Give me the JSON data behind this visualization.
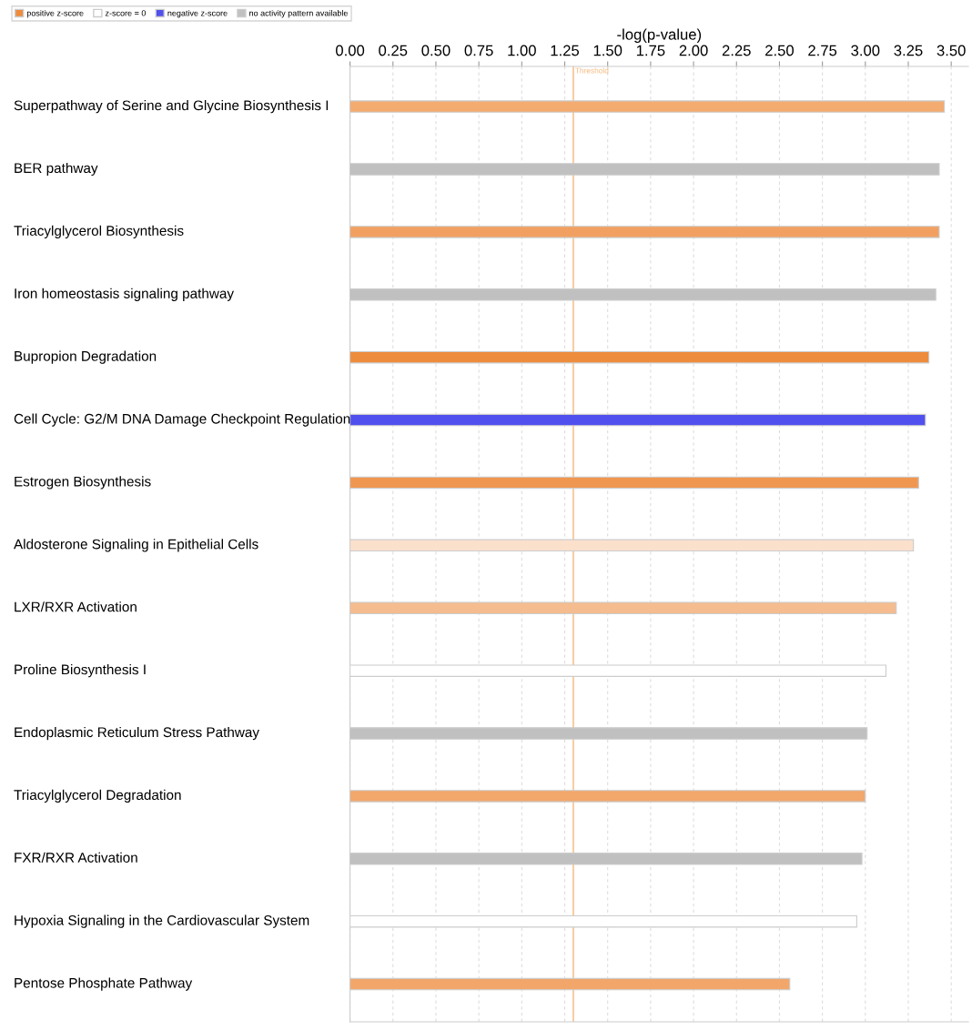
{
  "chart_data": {
    "type": "bar",
    "orientation": "horizontal",
    "xlabel": "-log(p-value)",
    "categories": [
      "Superpathway of Serine and Glycine Biosynthesis I",
      "BER pathway",
      "Triacylglycerol Biosynthesis",
      "Iron homeostasis signaling pathway",
      "Bupropion Degradation",
      "Cell Cycle: G2/M DNA Damage Checkpoint Regulation",
      "Estrogen Biosynthesis",
      "Aldosterone Signaling in Epithelial Cells",
      "LXR/RXR Activation",
      "Proline Biosynthesis I",
      "Endoplasmic Reticulum Stress Pathway",
      "Triacylglycerol Degradation",
      "FXR/RXR Activation",
      "Hypoxia Signaling in the Cardiovascular System",
      "Pentose Phosphate Pathway"
    ],
    "series": [
      {
        "name": "positive z-score",
        "color": "#ed8c3c",
        "values": [
          3.46,
          null,
          3.43,
          null,
          3.37,
          null,
          3.31,
          3.28,
          3.18,
          null,
          null,
          3.0,
          null,
          null,
          2.56
        ],
        "colors": [
          "#f3ab70",
          null,
          "#f2a061",
          null,
          "#ed8c3c",
          null,
          "#ef9751",
          "#fbe0cc",
          "#f4bc8f",
          null,
          null,
          "#f2a76b",
          null,
          null,
          "#f2a66a"
        ]
      },
      {
        "name": "z-score = 0",
        "color": "#ffffff",
        "values": [
          null,
          null,
          null,
          null,
          null,
          null,
          null,
          null,
          null,
          3.12,
          null,
          null,
          null,
          2.95,
          null
        ]
      },
      {
        "name": "negative z-score",
        "color": "#5050ee",
        "values": [
          null,
          null,
          null,
          null,
          null,
          3.35,
          null,
          null,
          null,
          null,
          null,
          null,
          null,
          null,
          null
        ]
      },
      {
        "name": "no activity pattern available",
        "color": "#c0c0c0",
        "values": [
          null,
          3.43,
          null,
          3.41,
          null,
          null,
          null,
          null,
          null,
          null,
          3.01,
          null,
          2.98,
          null,
          null
        ]
      }
    ],
    "xlim": [
      0,
      3.6
    ],
    "xticks": [
      {
        "value": 0,
        "label": "0.00"
      },
      {
        "value": 0.25,
        "label": "0.25"
      },
      {
        "value": 0.5,
        "label": "0.50"
      },
      {
        "value": 0.75,
        "label": "0.75"
      },
      {
        "value": 1,
        "label": "1.00"
      },
      {
        "value": 1.25,
        "label": "1.25"
      },
      {
        "value": 1.5,
        "label": "1.50"
      },
      {
        "value": 1.75,
        "label": "1.75"
      },
      {
        "value": 2,
        "label": "2.00"
      },
      {
        "value": 2.25,
        "label": "2.25"
      },
      {
        "value": 2.5,
        "label": "2.50"
      },
      {
        "value": 2.75,
        "label": "2.75"
      },
      {
        "value": 3,
        "label": "3.00"
      },
      {
        "value": 3.25,
        "label": "3.25"
      },
      {
        "value": 3.5,
        "label": "3.50"
      }
    ],
    "ref_lines": [
      {
        "axis": "x",
        "value": 1.3,
        "label": "Threshold",
        "color": "#f5b87a"
      }
    ],
    "grid": "x",
    "legend": "top left"
  }
}
